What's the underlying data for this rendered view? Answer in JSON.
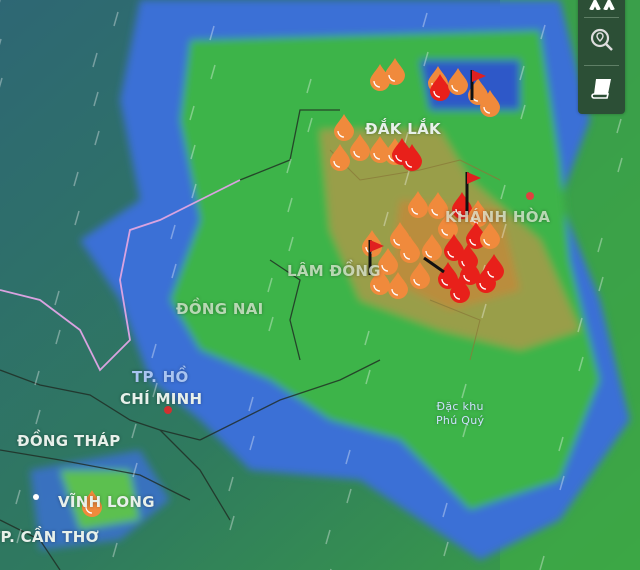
{
  "map": {
    "type": "weather-radar",
    "labels": {
      "dak_lak": "ĐẮK LẮK",
      "khanh_hoa": "KHÁNH HÒA",
      "lam_dong": "LÂM ĐỒNG",
      "dong_nai": "ĐỒNG NAI",
      "hcm_line1": "TP. HỒ",
      "hcm_line2": "CHÍ MINH",
      "dong_thap": "ĐỒNG THÁP",
      "vinh_long": "VĨNH LONG",
      "can_tho": "TP. CẦN THƠ",
      "phu_quy_line1": "Đặc khu",
      "phu_quy_line2": "Phú Quý"
    },
    "marker_types": [
      "raindrop-orange",
      "raindrop-red",
      "warning-flag"
    ],
    "colors": {
      "raindrop_orange": "#f08a3c",
      "raindrop_red": "#e8201a",
      "flag": "#e02020",
      "radar_light": "#3a8fd8",
      "radar_moderate": "#3cb44a",
      "radar_heavy": "#c8a040",
      "sea": "#3c9a5a"
    }
  },
  "controls": {
    "buttons": [
      {
        "name": "layers",
        "icon": "layers-icon"
      },
      {
        "name": "search-location",
        "icon": "location-search-icon"
      },
      {
        "name": "guide",
        "icon": "book-icon"
      }
    ]
  }
}
